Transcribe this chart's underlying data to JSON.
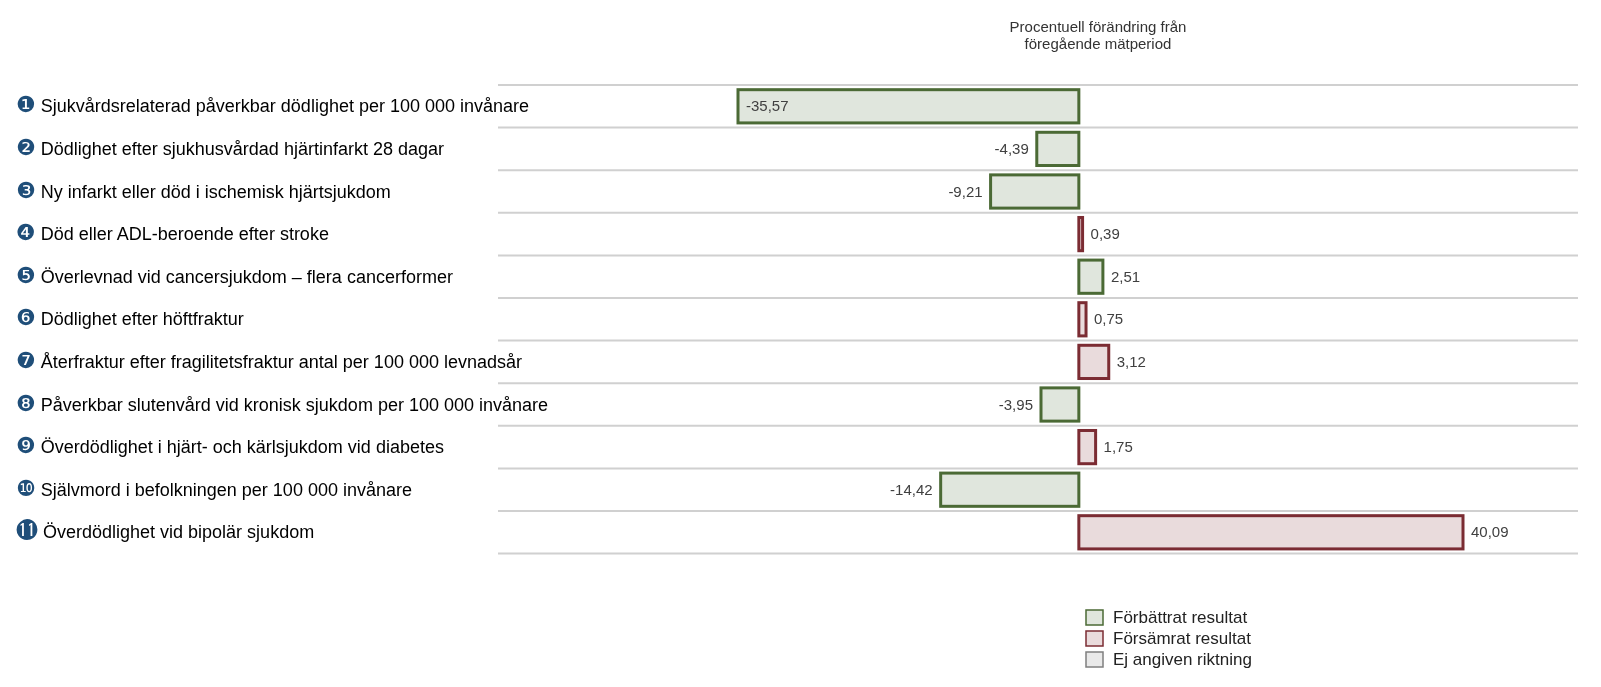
{
  "chart_data": {
    "type": "bar",
    "orientation": "horizontal",
    "title": "Procentuell förändring från\nföregående mätperiod",
    "categories": [
      "❶ Sjukvårdsrelaterad påverkbar dödlighet per 100 000 invånare",
      "❷ Dödlighet efter sjukhusvårdad hjärtinfarkt 28 dagar",
      "❸ Ny infarkt eller död i ischemisk hjärtsjukdom",
      "❹ Död eller ADL-beroende efter stroke",
      "❺ Överlevnad vid cancersjukdom – flera cancerformer",
      "❻ Dödlighet efter höftfraktur",
      "❼ Återfraktur efter fragilitetsfraktur antal per 100 000 levnadsår",
      "❽ Påverkbar slutenvård vid kronisk sjukdom per 100 000 invånare",
      "❾ Överdödlighet i hjärt- och kärlsjukdom vid diabetes",
      "❿ Självmord i befolkningen per 100 000 invånare",
      "⓫ Överdödlighet vid bipolär sjukdom"
    ],
    "series": [
      {
        "name": "Förbättrat resultat",
        "color": "#4b6a35",
        "values": [
          -35.57,
          -4.39,
          -9.21,
          null,
          2.51,
          null,
          null,
          -3.95,
          null,
          -14.42,
          null
        ],
        "value_labels": [
          "-35,57",
          "-4,39",
          "-9,21",
          null,
          "2,51",
          null,
          null,
          "-3,95",
          null,
          "-14,42",
          null
        ]
      },
      {
        "name": "Försämrat resultat",
        "color": "#7b2c33",
        "values": [
          null,
          null,
          null,
          0.39,
          null,
          0.75,
          3.12,
          null,
          1.75,
          null,
          40.09
        ],
        "value_labels": [
          null,
          null,
          null,
          "0,39",
          null,
          "0,75",
          "3,12",
          null,
          "1,75",
          null,
          "40,09"
        ]
      },
      {
        "name": "Ej angiven riktning",
        "color": "#7f7f7f",
        "values": [
          null,
          null,
          null,
          null,
          null,
          null,
          null,
          null,
          null,
          null,
          null
        ]
      }
    ],
    "grid": true,
    "legend": "bottom right"
  }
}
